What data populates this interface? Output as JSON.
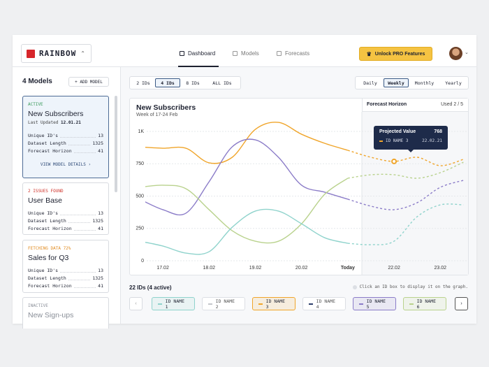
{
  "app": {
    "logo": "RAINBOW",
    "nav": [
      "Dashboard",
      "Models",
      "Forecasts"
    ],
    "nav_selected": 0,
    "pro_button": "Unlock PRO Features"
  },
  "sidebar": {
    "title": "4 Models",
    "add_button": "+ ADD MODEL",
    "models": [
      {
        "status": "ACTIVE",
        "status_color": "#3a9a5b",
        "name": "New Subscribers",
        "updated_label": "Last Updated",
        "updated": "12.01.21",
        "rows": [
          [
            "Unique ID's",
            13
          ],
          [
            "Dataset Length",
            1325
          ],
          [
            "Forecast Horizon",
            41
          ]
        ],
        "link": "VIEW MODEL DETAILS"
      },
      {
        "status": "2 ISSUES FOUND",
        "status_color": "#d0342c",
        "name": "User Base",
        "rows": [
          [
            "Unique ID's",
            13
          ],
          [
            "Dataset Length",
            1325
          ],
          [
            "Forecast Horizon",
            41
          ]
        ]
      },
      {
        "status": "FETCHING DATA 72%",
        "status_color": "#e08a1e",
        "name": "Sales for Q3",
        "rows": [
          [
            "Unique ID's",
            13
          ],
          [
            "Dataset Length",
            1325
          ],
          [
            "Forecast Horizon",
            41
          ]
        ]
      },
      {
        "status": "INACTIVE",
        "status_color": "#8a8f98",
        "name": "New Sign-ups"
      }
    ],
    "selected": 0
  },
  "controls": {
    "id_filters": [
      "2 IDs",
      "4 IDs",
      "8 IDs",
      "ALL IDs"
    ],
    "id_selected": 1,
    "periods": [
      "Daily",
      "Weekly",
      "Monthly",
      "Yearly"
    ],
    "period_selected": 1
  },
  "chart_data": {
    "type": "line",
    "title": "New Subscribers",
    "subtitle": "Week of 17-24 Feb",
    "forecast_label": "Forecast Horizon",
    "forecast_usage": "Used 2 / 5",
    "tooltip_title": "Projected Value",
    "tooltip_series": 0,
    "tooltip_index": 11,
    "tooltip_date": "22.02.21",
    "categories": [
      null,
      "17.02",
      null,
      "18.02",
      null,
      "19.02",
      null,
      "20.02",
      null,
      "Today",
      null,
      "22.02",
      null,
      "23.02",
      null
    ],
    "series": [
      {
        "name": "ID NAME 3",
        "color": "#f0a52a",
        "values": [
          880,
          870,
          870,
          757,
          800,
          1016,
          1070,
          978,
          908,
          854,
          800,
          768,
          800,
          735,
          784
        ]
      },
      {
        "name": "ID NAME 5",
        "color": "#8b7cc8",
        "values": [
          476,
          395,
          368,
          611,
          881,
          935,
          800,
          584,
          530,
          476,
          422,
          395,
          449,
          568,
          622
        ]
      },
      {
        "name": "ID NAME 6",
        "color": "#b9d28d",
        "values": [
          568,
          584,
          557,
          395,
          232,
          151,
          151,
          286,
          514,
          638,
          665,
          665,
          638,
          681,
          762
        ]
      },
      {
        "name": "ID NAME 1",
        "color": "#8fd3cc",
        "values": [
          151,
          114,
          59,
          70,
          259,
          384,
          384,
          286,
          178,
          135,
          124,
          151,
          341,
          432,
          432
        ]
      }
    ],
    "ylim": [
      0,
      1000
    ],
    "yticks": [
      0,
      250,
      500,
      750,
      {
        "value": 1000,
        "label": "1K"
      }
    ],
    "grid": true
  },
  "ids": {
    "summary": "22 IDs (4 active)",
    "hint": "Click an ID box to display it on the graph.",
    "chips": [
      {
        "label": "ID NAME 1",
        "color": "#8fd3cc",
        "active": true
      },
      {
        "label": "ID NAME 2",
        "color": "#c4c7cc",
        "active": false
      },
      {
        "label": "ID NAME 3",
        "color": "#f0a52a",
        "active": true
      },
      {
        "label": "ID NAME 4",
        "color": "#2c3e6b",
        "active": false
      },
      {
        "label": "ID NAME 5",
        "color": "#8b7cc8",
        "active": true
      },
      {
        "label": "ID NAME 6",
        "color": "#b9d28d",
        "active": true
      }
    ]
  }
}
